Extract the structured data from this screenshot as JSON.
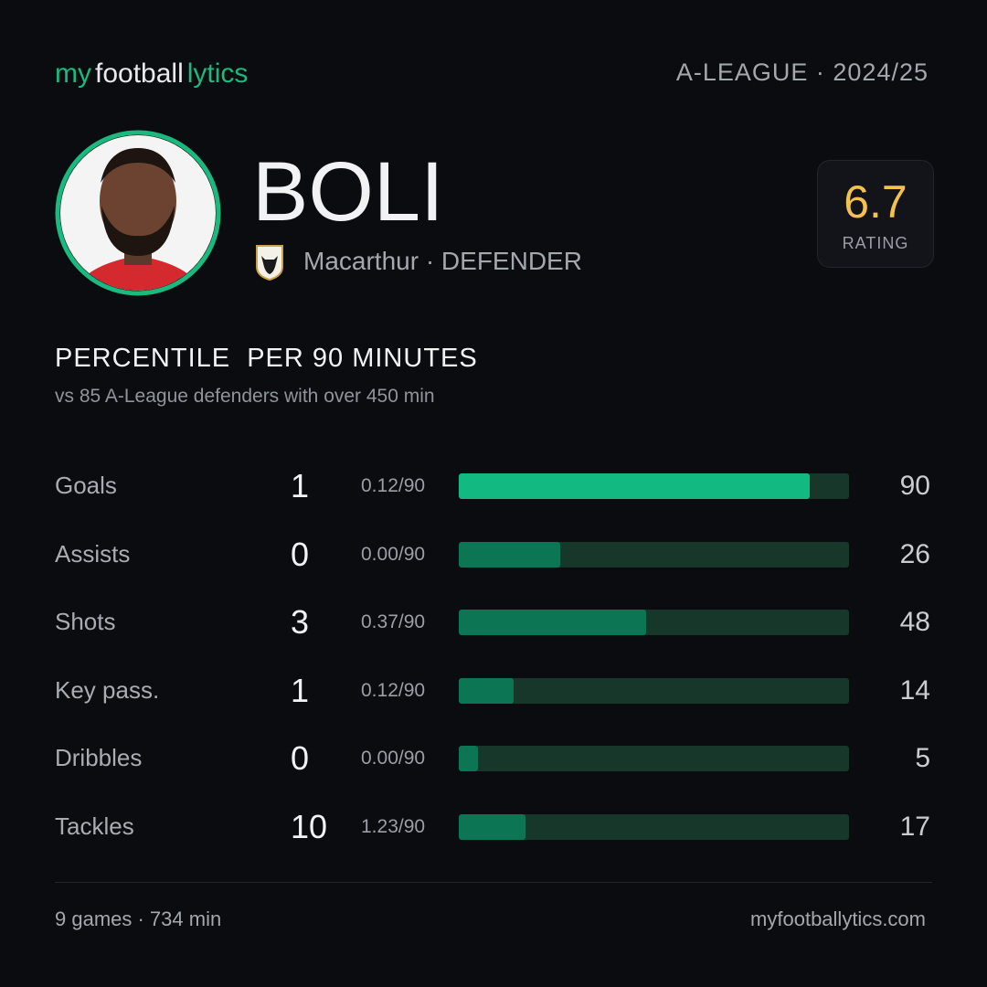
{
  "brand": {
    "part1": "my",
    "part2": "football",
    "part3": "lytics"
  },
  "league": "A-LEAGUE · 2024/25",
  "player": {
    "name": "BOLI",
    "subtitle": "Macarthur · DEFENDER"
  },
  "rating": {
    "value": 6.7,
    "label": "RATING"
  },
  "section": {
    "title": "PERCENTILE  PER 90 MINUTES",
    "subtitle": "vs 85 A-League defenders with over 450 min"
  },
  "percentile_scale": [
    0,
    100
  ],
  "stats": [
    {
      "name": "Goals",
      "total": 1,
      "per90": "0.12/90",
      "percentile": 90,
      "bar_color": "#12b981"
    },
    {
      "name": "Assists",
      "total": 0,
      "per90": "0.00/90",
      "percentile": 26,
      "bar_color": "#0c7553"
    },
    {
      "name": "Shots",
      "total": 3,
      "per90": "0.37/90",
      "percentile": 48,
      "bar_color": "#0c7553"
    },
    {
      "name": "Key pass.",
      "total": 1,
      "per90": "0.12/90",
      "percentile": 14,
      "bar_color": "#0c7553"
    },
    {
      "name": "Dribbles",
      "total": 0,
      "per90": "0.00/90",
      "percentile": 5,
      "bar_color": "#0c7553"
    },
    {
      "name": "Tackles",
      "total": 10,
      "per90": "1.23/90",
      "percentile": 17,
      "bar_color": "#0c7553"
    }
  ],
  "footer": {
    "summary": "9 games · 734 min",
    "site": "myfootballytics.com"
  }
}
